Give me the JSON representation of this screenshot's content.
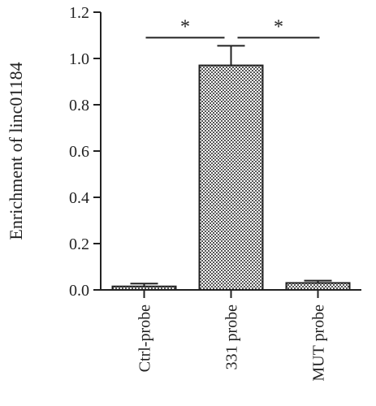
{
  "chart_data": {
    "type": "bar",
    "ylabel": "Enrichment of linc01184",
    "xlabel": "",
    "ylim": [
      0,
      1.2
    ],
    "yticks": [
      "0.0",
      "0.2",
      "0.4",
      "0.6",
      "0.8",
      "1.0",
      "1.2"
    ],
    "categories": [
      "Ctrl-probe",
      "331 probe",
      "MUT probe"
    ],
    "values": [
      0.015,
      0.97,
      0.03
    ],
    "errors": [
      0.012,
      0.085,
      0.01
    ],
    "significance": [
      {
        "from": 0,
        "to": 1,
        "label": "*",
        "y": 1.09
      },
      {
        "from": 1,
        "to": 2,
        "label": "*",
        "y": 1.09
      }
    ],
    "bar_fill": "checkered",
    "colors": {
      "axis": "#222222",
      "bar_dark": "#555555",
      "bar_light": "#ffffff"
    }
  }
}
